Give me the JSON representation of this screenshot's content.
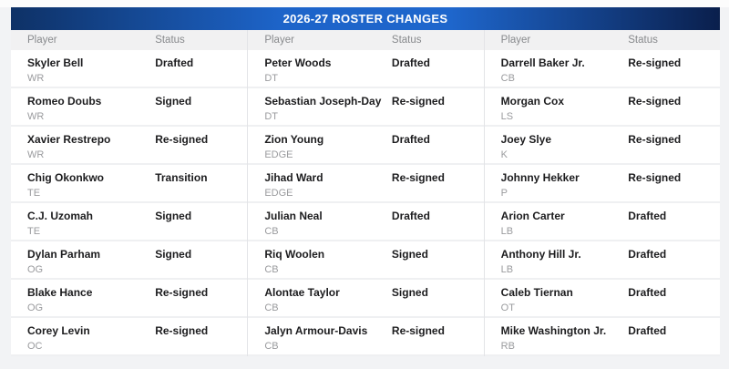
{
  "banner": {
    "title": "2026-27 ROSTER CHANGES",
    "colors": {
      "gradient_left": "#0e3166",
      "gradient_center": "#1e66cc",
      "gradient_right": "#0a1f4c",
      "title_text": "#ffffff"
    }
  },
  "table": {
    "column_headers": {
      "player": "Player",
      "status": "Status"
    },
    "status_values_seen": [
      "Drafted",
      "Signed",
      "Re-signed",
      "Transition"
    ],
    "groups": [
      {
        "rows": [
          {
            "name": "Skyler Bell",
            "position": "WR",
            "status": "Drafted"
          },
          {
            "name": "Romeo Doubs",
            "position": "WR",
            "status": "Signed"
          },
          {
            "name": "Xavier Restrepo",
            "position": "WR",
            "status": "Re-signed"
          },
          {
            "name": "Chig Okonkwo",
            "position": "TE",
            "status": "Transition"
          },
          {
            "name": "C.J. Uzomah",
            "position": "TE",
            "status": "Signed"
          },
          {
            "name": "Dylan Parham",
            "position": "OG",
            "status": "Signed"
          },
          {
            "name": "Blake Hance",
            "position": "OG",
            "status": "Re-signed"
          },
          {
            "name": "Corey Levin",
            "position": "OC",
            "status": "Re-signed"
          }
        ]
      },
      {
        "rows": [
          {
            "name": "Peter Woods",
            "position": "DT",
            "status": "Drafted"
          },
          {
            "name": "Sebastian Joseph-Day",
            "position": "DT",
            "status": "Re-signed"
          },
          {
            "name": "Zion Young",
            "position": "EDGE",
            "status": "Drafted"
          },
          {
            "name": "Jihad Ward",
            "position": "EDGE",
            "status": "Re-signed"
          },
          {
            "name": "Julian Neal",
            "position": "CB",
            "status": "Drafted"
          },
          {
            "name": "Riq Woolen",
            "position": "CB",
            "status": "Signed"
          },
          {
            "name": "Alontae Taylor",
            "position": "CB",
            "status": "Signed"
          },
          {
            "name": "Jalyn Armour-Davis",
            "position": "CB",
            "status": "Re-signed"
          }
        ]
      },
      {
        "rows": [
          {
            "name": "Darrell Baker Jr.",
            "position": "CB",
            "status": "Re-signed"
          },
          {
            "name": "Morgan Cox",
            "position": "LS",
            "status": "Re-signed"
          },
          {
            "name": "Joey Slye",
            "position": "K",
            "status": "Re-signed"
          },
          {
            "name": "Johnny Hekker",
            "position": "P",
            "status": "Re-signed"
          },
          {
            "name": "Arion Carter",
            "position": "LB",
            "status": "Drafted"
          },
          {
            "name": "Anthony Hill Jr.",
            "position": "LB",
            "status": "Drafted"
          },
          {
            "name": "Caleb Tiernan",
            "position": "OT",
            "status": "Drafted"
          },
          {
            "name": "Mike Washington Jr.",
            "position": "RB",
            "status": "Drafted"
          }
        ]
      }
    ]
  }
}
